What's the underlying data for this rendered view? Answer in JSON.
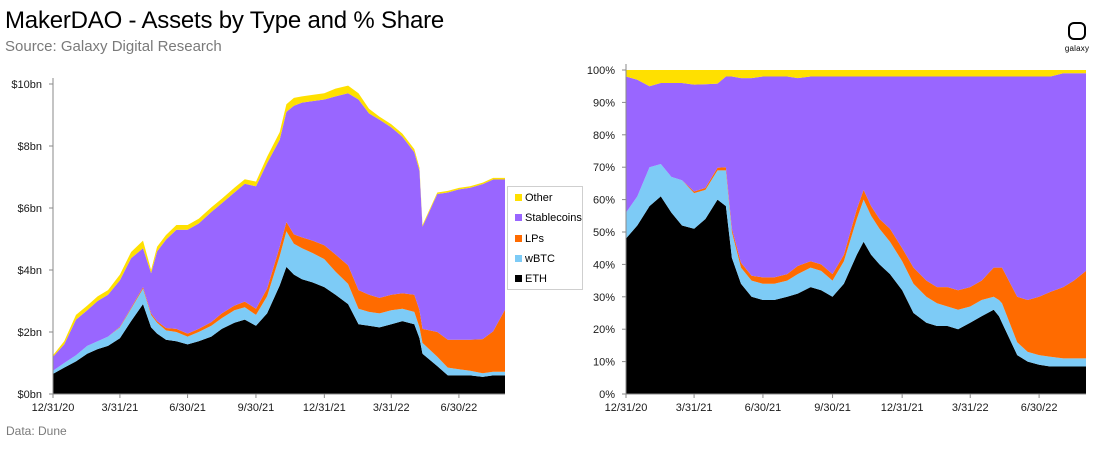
{
  "header": {
    "title": "MakerDAO - Assets by Type and % Share",
    "subtitle": "Source: Galaxy Digital Research"
  },
  "footer": {
    "source_note": "Data: Dune"
  },
  "logo": {
    "text": "galaxy",
    "icon": "galaxy-logo-icon"
  },
  "colors": {
    "ETH": "#000000",
    "wBTC": "#7dcbf6",
    "LPs": "#ff6b00",
    "Stablecoins": "#9966ff",
    "Other": "#ffe000"
  },
  "chart_data": [
    {
      "type": "area",
      "stacked": true,
      "ylim": [
        0,
        10
      ],
      "y_unit": "billion USD",
      "yticks": [
        "$0bn",
        "$2bn",
        "$4bn",
        "$6bn",
        "$8bn",
        "$10bn"
      ],
      "xticks": [
        "12/31/20",
        "3/31/21",
        "6/30/21",
        "9/30/21",
        "12/31/21",
        "3/31/22",
        "6/30/22"
      ],
      "grid": false,
      "legend": {
        "placement": "right",
        "entries": [
          "Other",
          "Stablecoins",
          "LPs",
          "wBTC",
          "ETH"
        ]
      },
      "x": [
        "2020-12-31",
        "2021-01-15",
        "2021-01-31",
        "2021-02-15",
        "2021-03-01",
        "2021-03-15",
        "2021-03-31",
        "2021-04-15",
        "2021-05-01",
        "2021-05-12",
        "2021-05-20",
        "2021-06-01",
        "2021-06-15",
        "2021-06-30",
        "2021-07-15",
        "2021-08-01",
        "2021-08-15",
        "2021-09-01",
        "2021-09-15",
        "2021-09-30",
        "2021-10-15",
        "2021-11-01",
        "2021-11-10",
        "2021-11-20",
        "2021-12-01",
        "2021-12-15",
        "2021-12-31",
        "2022-01-15",
        "2022-02-01",
        "2022-02-15",
        "2022-03-01",
        "2022-03-15",
        "2022-03-31",
        "2022-04-15",
        "2022-05-01",
        "2022-05-08",
        "2022-05-12",
        "2022-06-01",
        "2022-06-15",
        "2022-06-30",
        "2022-07-15",
        "2022-08-01",
        "2022-08-15",
        "2022-08-31"
      ],
      "series": [
        {
          "name": "ETH",
          "values": [
            0.65,
            0.85,
            1.05,
            1.3,
            1.45,
            1.55,
            1.8,
            2.35,
            2.9,
            2.15,
            1.95,
            1.75,
            1.7,
            1.6,
            1.7,
            1.85,
            2.1,
            2.3,
            2.4,
            2.2,
            2.6,
            3.5,
            4.1,
            3.85,
            3.7,
            3.6,
            3.45,
            3.2,
            2.9,
            2.25,
            2.2,
            2.15,
            2.25,
            2.35,
            2.25,
            1.8,
            1.3,
            0.9,
            0.6,
            0.6,
            0.6,
            0.55,
            0.6,
            0.6
          ]
        },
        {
          "name": "wBTC",
          "values": [
            0.1,
            0.15,
            0.2,
            0.25,
            0.25,
            0.3,
            0.35,
            0.4,
            0.5,
            0.4,
            0.35,
            0.3,
            0.3,
            0.25,
            0.3,
            0.35,
            0.35,
            0.4,
            0.4,
            0.35,
            0.55,
            0.95,
            1.15,
            1.0,
            1.0,
            0.95,
            0.9,
            0.75,
            0.65,
            0.5,
            0.45,
            0.45,
            0.45,
            0.4,
            0.4,
            0.35,
            0.35,
            0.3,
            0.25,
            0.2,
            0.15,
            0.12,
            0.12,
            0.12
          ]
        },
        {
          "name": "LPs",
          "values": [
            0,
            0,
            0,
            0,
            0,
            0,
            0.02,
            0.03,
            0.05,
            0.05,
            0.05,
            0.08,
            0.1,
            0.1,
            0.1,
            0.12,
            0.15,
            0.15,
            0.18,
            0.2,
            0.25,
            0.3,
            0.3,
            0.3,
            0.35,
            0.4,
            0.45,
            0.55,
            0.6,
            0.6,
            0.55,
            0.5,
            0.5,
            0.5,
            0.55,
            0.55,
            0.45,
            0.8,
            0.9,
            0.95,
            1.0,
            1.1,
            1.3,
            2.0
          ]
        },
        {
          "name": "Stablecoins",
          "values": [
            0.45,
            0.6,
            1.15,
            1.15,
            1.3,
            1.35,
            1.5,
            1.6,
            1.25,
            1.3,
            2.25,
            2.85,
            3.2,
            3.35,
            3.4,
            3.55,
            3.55,
            3.65,
            3.8,
            3.95,
            4.05,
            3.45,
            3.55,
            4.15,
            4.35,
            4.5,
            4.7,
            5.1,
            5.55,
            6.15,
            5.85,
            5.75,
            5.4,
            5.05,
            4.6,
            4.5,
            3.3,
            4.45,
            4.75,
            4.85,
            4.9,
            5.0,
            4.9,
            4.2
          ]
        },
        {
          "name": "Other",
          "values": [
            0.05,
            0.1,
            0.15,
            0.15,
            0.15,
            0.15,
            0.18,
            0.2,
            0.25,
            0.1,
            0.15,
            0.15,
            0.15,
            0.15,
            0.15,
            0.15,
            0.15,
            0.15,
            0.15,
            0.15,
            0.2,
            0.25,
            0.25,
            0.25,
            0.2,
            0.2,
            0.2,
            0.25,
            0.25,
            0.2,
            0.15,
            0.1,
            0.1,
            0.1,
            0.1,
            0.1,
            0.05,
            0.05,
            0.05,
            0.05,
            0.05,
            0.05,
            0.05,
            0.05
          ]
        }
      ]
    },
    {
      "type": "area",
      "stacked": true,
      "normalized": true,
      "ylim": [
        0,
        100
      ],
      "y_unit": "percent",
      "yticks": [
        "0%",
        "10%",
        "20%",
        "30%",
        "40%",
        "50%",
        "60%",
        "70%",
        "80%",
        "90%",
        "100%"
      ],
      "xticks": [
        "12/31/20",
        "3/31/21",
        "6/30/21",
        "9/30/21",
        "12/31/21",
        "3/31/22",
        "6/30/22"
      ],
      "grid": false,
      "x": [
        "2020-12-31",
        "2021-01-15",
        "2021-01-31",
        "2021-02-15",
        "2021-03-01",
        "2021-03-15",
        "2021-03-31",
        "2021-04-15",
        "2021-05-01",
        "2021-05-12",
        "2021-05-20",
        "2021-06-01",
        "2021-06-15",
        "2021-06-30",
        "2021-07-15",
        "2021-08-01",
        "2021-08-15",
        "2021-09-01",
        "2021-09-15",
        "2021-09-30",
        "2021-10-15",
        "2021-11-01",
        "2021-11-10",
        "2021-11-20",
        "2021-12-01",
        "2021-12-15",
        "2021-12-31",
        "2022-01-15",
        "2022-02-01",
        "2022-02-15",
        "2022-03-01",
        "2022-03-15",
        "2022-03-31",
        "2022-04-15",
        "2022-05-01",
        "2022-05-08",
        "2022-05-12",
        "2022-06-01",
        "2022-06-15",
        "2022-06-30",
        "2022-07-15",
        "2022-08-01",
        "2022-08-15",
        "2022-08-31"
      ],
      "series": [
        {
          "name": "ETH",
          "values": [
            48,
            52,
            58,
            61,
            56,
            52,
            51,
            54,
            60,
            58,
            42,
            34,
            30,
            29,
            29,
            30,
            31,
            33,
            32,
            30,
            34,
            43,
            47,
            43,
            40,
            37,
            32,
            25,
            22,
            21,
            21,
            20,
            22,
            24,
            26,
            24,
            22,
            12,
            10,
            9,
            8.5,
            8.5,
            8.5,
            8.5
          ]
        },
        {
          "name": "wBTC",
          "values": [
            8,
            9,
            12,
            10,
            11,
            14,
            11,
            9,
            9,
            11,
            8,
            5,
            5,
            5,
            5,
            5,
            6,
            6,
            6,
            5,
            7,
            11,
            13,
            12,
            11,
            10,
            9,
            9,
            8,
            7,
            6,
            6,
            5,
            5,
            4,
            5,
            6,
            4,
            3,
            3,
            3,
            2.5,
            2.5,
            2.5
          ]
        },
        {
          "name": "LPs",
          "values": [
            0,
            0,
            0,
            0,
            0,
            0,
            0.5,
            0.6,
            0.8,
            1,
            1,
            1.5,
            1.5,
            2,
            2,
            2,
            2.5,
            2,
            2,
            2,
            2,
            3,
            3,
            3,
            3,
            4,
            4,
            5,
            5,
            5,
            6,
            6,
            6,
            6,
            9,
            10,
            11,
            14,
            16,
            18,
            20,
            22,
            24,
            27
          ]
        },
        {
          "name": "Stablecoins",
          "values": [
            42,
            36,
            25,
            25,
            29,
            30,
            33,
            32,
            26,
            28,
            47,
            57,
            61,
            62,
            62,
            61,
            58,
            57,
            58,
            61,
            55,
            41,
            35,
            40,
            44,
            47,
            53,
            59,
            63,
            65,
            65,
            66,
            65,
            63,
            59,
            59,
            59,
            68,
            69,
            68,
            66.5,
            66,
            64,
            61
          ]
        },
        {
          "name": "Other",
          "values": [
            2,
            3,
            5,
            4,
            4,
            4,
            4.5,
            4.4,
            4.2,
            2,
            2,
            2.5,
            2.5,
            2,
            2,
            2,
            2.5,
            2,
            2,
            2,
            2,
            2,
            2,
            2,
            2,
            2,
            2,
            2,
            2,
            2,
            2,
            2,
            2,
            2,
            2,
            2,
            2,
            2,
            2,
            2,
            2,
            1,
            1,
            1
          ]
        }
      ]
    }
  ]
}
